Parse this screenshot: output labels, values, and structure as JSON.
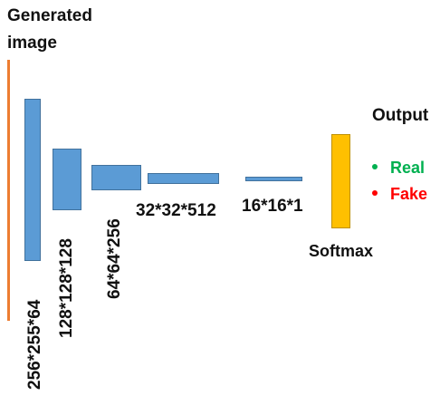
{
  "title_lines": [
    "Generated",
    "image"
  ],
  "layers": [
    {
      "label": "256*255*64"
    },
    {
      "label": "128*128*128"
    },
    {
      "label": "64*64*256"
    },
    {
      "label": "32*32*512"
    },
    {
      "label": "16*16*1"
    }
  ],
  "softmax": {
    "label": "Softmax"
  },
  "output": {
    "title": "Output",
    "items": [
      {
        "label": "Real",
        "color": "#00b050"
      },
      {
        "label": "Fake",
        "color": "#ff0000"
      }
    ]
  },
  "colors": {
    "image_bar": "#ed7d31",
    "layer_fill": "#5b9bd5",
    "layer_border": "#41719c",
    "softmax_fill": "#ffc000",
    "softmax_border": "#bf9000"
  }
}
